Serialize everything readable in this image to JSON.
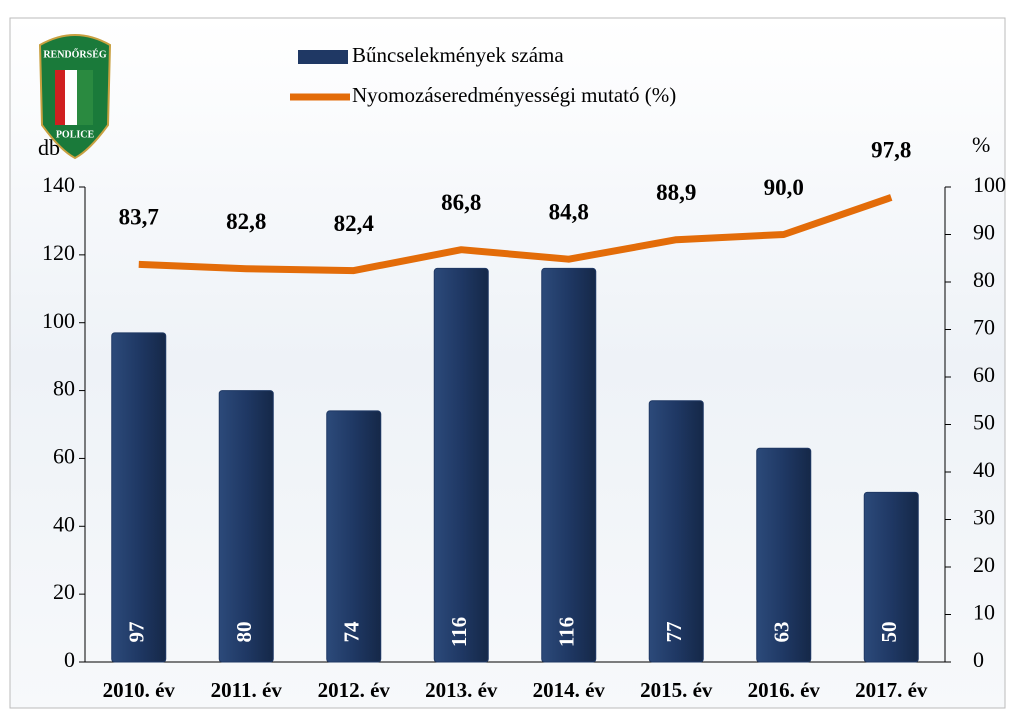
{
  "chart_data": {
    "type": "bar_line",
    "annotations": [
      "RENDŐRSÉG",
      "POLICE"
    ],
    "y_label": "db",
    "y2_label": "%",
    "categories": [
      "2010. év",
      "2011. év",
      "2012. év",
      "2013. év",
      "2014. év",
      "2015. év",
      "2016. év",
      "2017. év"
    ],
    "series": [
      {
        "name": "Bűncselekmények száma",
        "type": "bar",
        "color": "#1f3864",
        "axis": "y",
        "values": [
          97,
          80,
          74,
          116,
          116,
          77,
          63,
          50
        ]
      },
      {
        "name": "Nyomozáseredményességi mutató (%)",
        "type": "line",
        "color": "#e36c09",
        "axis": "y2",
        "values": [
          83.7,
          82.8,
          82.4,
          86.8,
          84.8,
          88.9,
          90.0,
          97.8
        ],
        "value_labels": [
          "83,7",
          "82,8",
          "82,4",
          "86,8",
          "84,8",
          "88,9",
          "90,0",
          "97,8"
        ]
      }
    ],
    "ylim": [
      0,
      140
    ],
    "yticks": [
      0,
      20,
      40,
      60,
      80,
      100,
      120,
      140
    ],
    "y2lim": [
      0,
      100
    ],
    "y2ticks": [
      0,
      10,
      20,
      30,
      40,
      50,
      60,
      70,
      80,
      90,
      100
    ],
    "grid": false
  }
}
